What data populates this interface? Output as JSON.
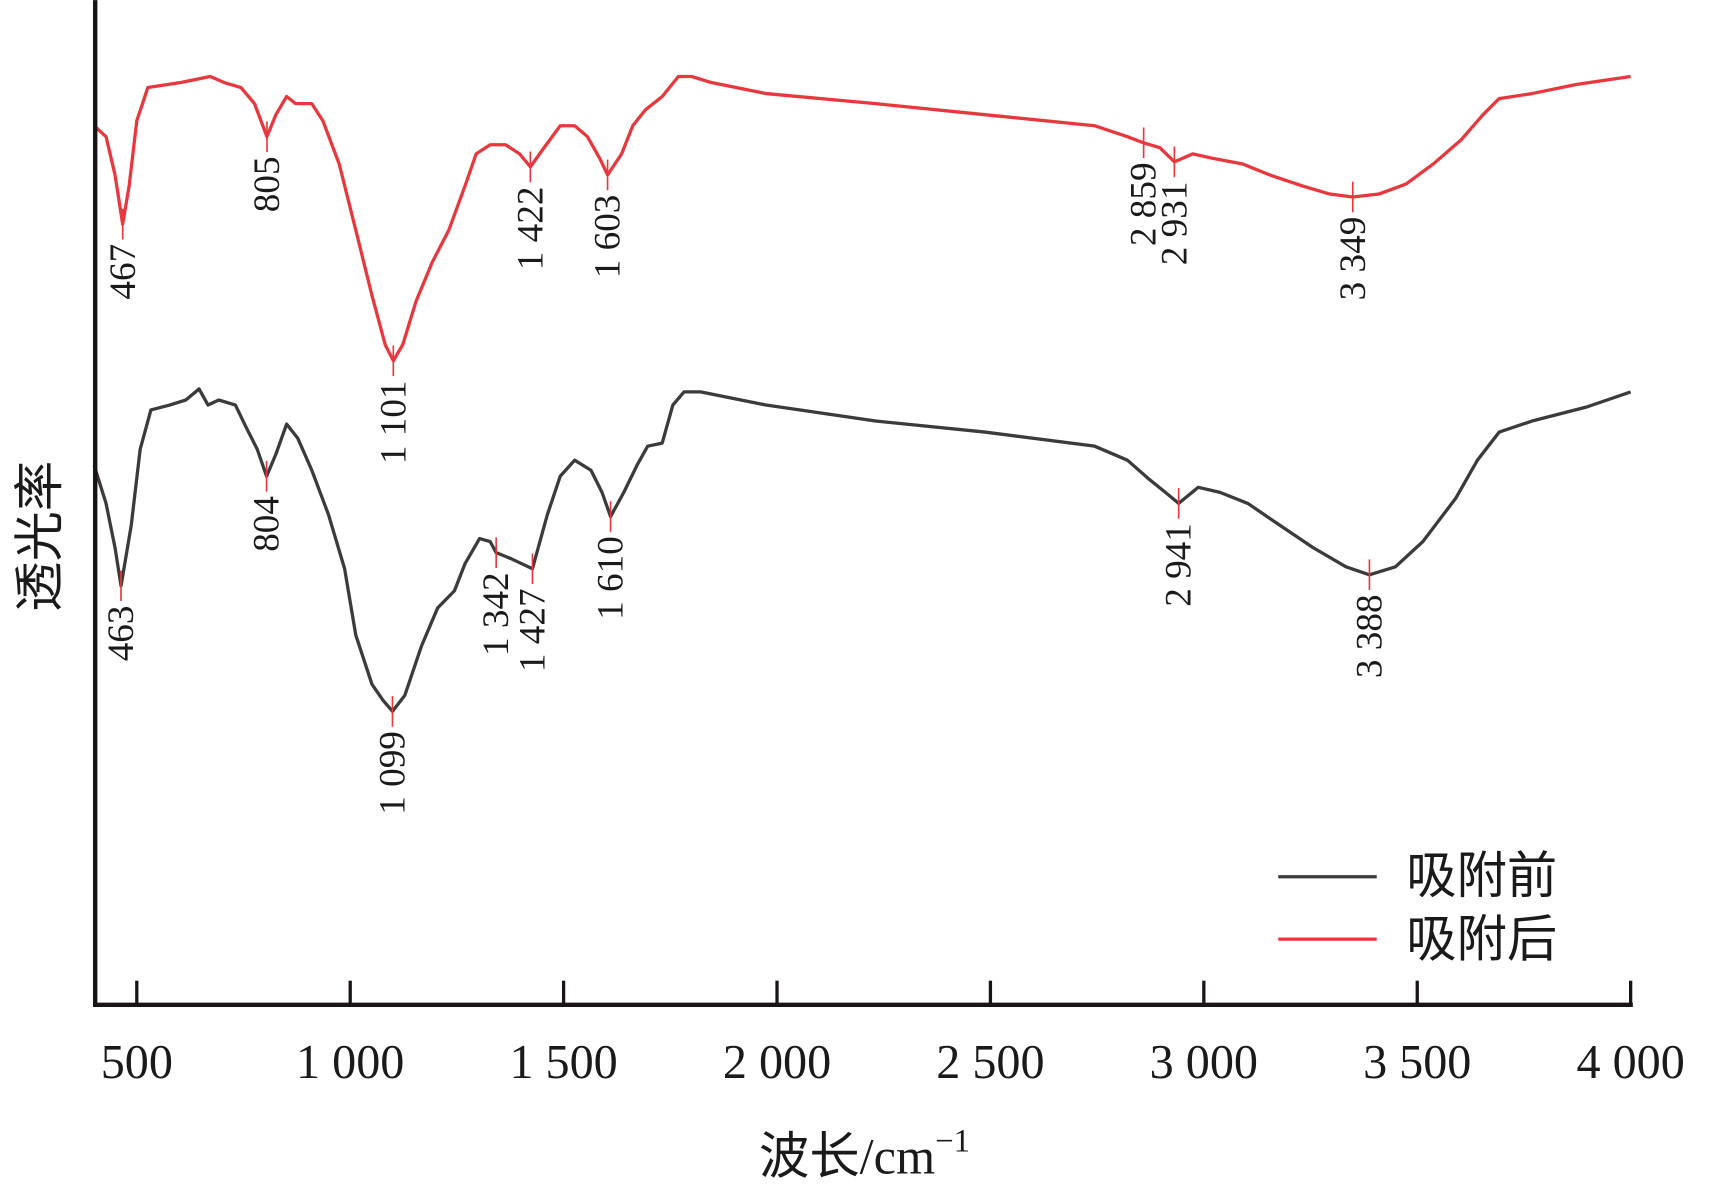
{
  "chart_data": {
    "type": "line",
    "title": "",
    "xlabel": "波长/cm",
    "xlabel_superscript": "−1",
    "ylabel": "透光率",
    "xlim": [
      400,
      4000
    ],
    "ylim": [
      0,
      100
    ],
    "x_ticks": [
      500,
      1000,
      1500,
      2000,
      2500,
      3000,
      3500,
      4000
    ],
    "x_tick_labels": [
      "500",
      "1 000",
      "1 500",
      "2 000",
      "2 500",
      "3 000",
      "3 500",
      "4 000"
    ],
    "y_ticks": [],
    "grid": false,
    "legend_position": "bottom-right",
    "series": [
      {
        "name": "吸附前",
        "color": "#3c3a3a",
        "x": [
          400,
          428,
          449,
          463,
          487,
          508,
          533,
          577,
          615,
          646,
          667,
          692,
          731,
          756,
          782,
          804,
          826,
          851,
          877,
          910,
          949,
          987,
          1013,
          1051,
          1077,
          1099,
          1128,
          1167,
          1205,
          1244,
          1269,
          1303,
          1328,
          1342,
          1377,
          1427,
          1462,
          1492,
          1526,
          1564,
          1590,
          1610,
          1641,
          1672,
          1697,
          1731,
          1756,
          1782,
          1821,
          1974,
          2231,
          2487,
          2744,
          2821,
          2872,
          2910,
          2941,
          2987,
          3038,
          3103,
          3179,
          3256,
          3333,
          3388,
          3449,
          3513,
          3590,
          3641,
          3692,
          3769,
          3897,
          4000
        ],
        "y": [
          53.7,
          49.9,
          45.5,
          41.7,
          47.7,
          55.3,
          59.2,
          59.7,
          60.2,
          61.3,
          59.7,
          60.2,
          59.7,
          57.5,
          55.3,
          52.6,
          54.8,
          57.8,
          56.4,
          53.2,
          48.8,
          43.4,
          36.8,
          31.9,
          30.3,
          29.2,
          30.8,
          35.7,
          39.5,
          41.2,
          43.9,
          46.4,
          46.1,
          45.0,
          44.4,
          43.4,
          48.8,
          52.6,
          54.2,
          53.2,
          51.0,
          48.6,
          51.0,
          53.7,
          55.6,
          55.9,
          59.7,
          61.0,
          61.0,
          59.7,
          58.1,
          57.0,
          55.6,
          54.2,
          52.3,
          51.0,
          49.9,
          51.5,
          51.0,
          49.9,
          47.7,
          45.5,
          43.6,
          42.8,
          43.6,
          46.1,
          50.4,
          54.2,
          57.0,
          58.1,
          59.5,
          61.0
        ],
        "peaks": [
          {
            "x": 463,
            "label": "463"
          },
          {
            "x": 804,
            "label": "804"
          },
          {
            "x": 1099,
            "label": "1 099"
          },
          {
            "x": 1342,
            "label": "1 342"
          },
          {
            "x": 1427,
            "label": "1 427"
          },
          {
            "x": 1610,
            "label": "1 610"
          },
          {
            "x": 2941,
            "label": "2 941"
          },
          {
            "x": 3388,
            "label": "3 388"
          }
        ]
      },
      {
        "name": "吸附后",
        "color": "#e8383d",
        "x": [
          400,
          428,
          449,
          467,
          482,
          500,
          526,
          603,
          672,
          705,
          744,
          776,
          805,
          826,
          851,
          872,
          910,
          936,
          974,
          1013,
          1051,
          1082,
          1101,
          1123,
          1154,
          1192,
          1231,
          1269,
          1295,
          1328,
          1364,
          1397,
          1422,
          1454,
          1492,
          1526,
          1556,
          1585,
          1603,
          1636,
          1662,
          1692,
          1731,
          1769,
          1800,
          1846,
          1974,
          2231,
          2487,
          2744,
          2821,
          2859,
          2897,
          2931,
          2974,
          3026,
          3090,
          3154,
          3231,
          3295,
          3349,
          3410,
          3474,
          3538,
          3603,
          3654,
          3692,
          3769,
          3872,
          4000
        ],
        "y": [
          87.5,
          86.4,
          82.6,
          77.7,
          81.5,
          88.0,
          91.3,
          91.8,
          92.4,
          91.8,
          91.3,
          89.7,
          86.4,
          88.6,
          90.4,
          89.7,
          89.7,
          88.0,
          83.7,
          77.1,
          70.6,
          65.7,
          64.1,
          65.7,
          70.0,
          73.9,
          77.1,
          81.5,
          84.7,
          85.6,
          85.6,
          84.7,
          83.4,
          85.3,
          87.5,
          87.5,
          86.4,
          84.2,
          82.6,
          84.7,
          87.5,
          89.1,
          90.4,
          92.4,
          92.4,
          91.8,
          90.7,
          89.7,
          88.6,
          87.5,
          86.4,
          85.8,
          85.3,
          83.9,
          84.7,
          84.2,
          83.7,
          82.6,
          81.5,
          80.7,
          80.4,
          80.7,
          81.7,
          83.7,
          86.1,
          88.6,
          90.2,
          90.7,
          91.6,
          92.4
        ],
        "peaks": [
          {
            "x": 467,
            "label": "467"
          },
          {
            "x": 805,
            "label": "805"
          },
          {
            "x": 1101,
            "label": "1 101"
          },
          {
            "x": 1422,
            "label": "1 422"
          },
          {
            "x": 1603,
            "label": "1 603"
          },
          {
            "x": 2859,
            "label": "2 859"
          },
          {
            "x": 2931,
            "label": "2 931"
          },
          {
            "x": 3349,
            "label": "3 349"
          }
        ]
      }
    ]
  }
}
